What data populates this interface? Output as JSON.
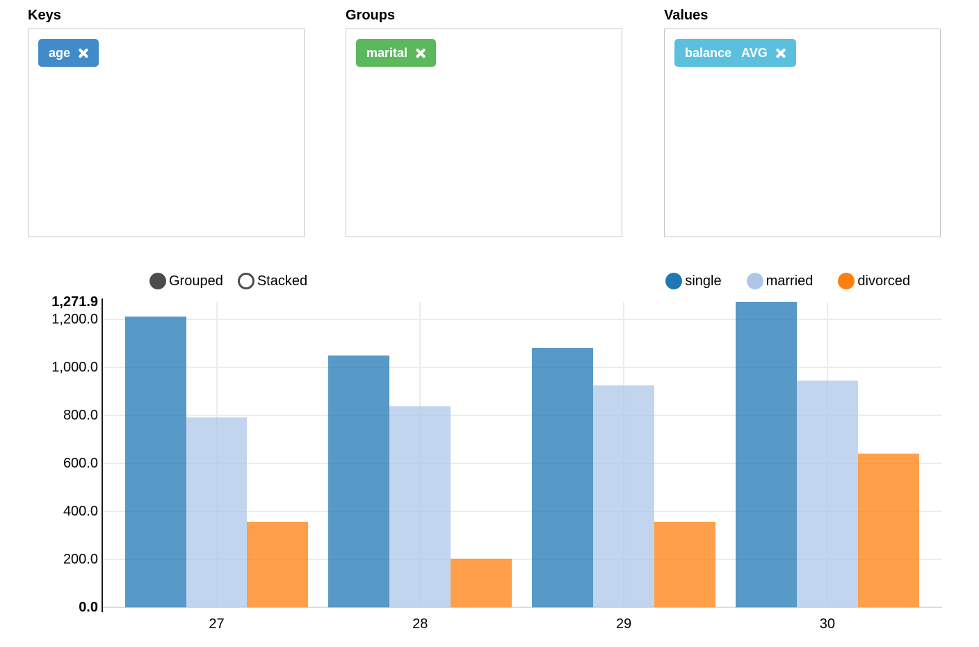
{
  "panels": [
    {
      "id": "keys",
      "label": "Keys",
      "tags": [
        {
          "text": "age",
          "agg": "",
          "icon": "x-icon",
          "color": "#428bca"
        }
      ]
    },
    {
      "id": "groups",
      "label": "Groups",
      "tags": [
        {
          "text": "marital",
          "agg": "",
          "icon": "x-icon",
          "color": "#5cb85c"
        }
      ]
    },
    {
      "id": "values",
      "label": "Values",
      "tags": [
        {
          "text": "balance",
          "agg": "AVG",
          "icon": "x-icon",
          "color": "#5bc0de"
        }
      ]
    }
  ],
  "chart_controls": [
    {
      "label": "Grouped",
      "active": true
    },
    {
      "label": "Stacked",
      "active": false
    }
  ],
  "control_color": "#4c4c4c",
  "chart_data": {
    "type": "bar",
    "mode": "grouped",
    "title": "",
    "xlabel": "",
    "ylabel": "",
    "categories": [
      "27",
      "28",
      "29",
      "30"
    ],
    "series": [
      {
        "name": "single",
        "color": "#1f77b4",
        "values": [
          1209.7,
          1047.5,
          1081.5,
          1271.9
        ]
      },
      {
        "name": "married",
        "color": "#aec7e8",
        "values": [
          792.1,
          838.7,
          924.8,
          943.5
        ]
      },
      {
        "name": "divorced",
        "color": "#ff7f0e",
        "values": [
          357.5,
          203.5,
          357.5,
          640.5
        ]
      }
    ],
    "ylim": [
      0,
      1271.9
    ],
    "y_ticks": [
      {
        "label": "0.0",
        "value": 0,
        "bold": true
      },
      {
        "label": "200.0",
        "value": 200,
        "bold": false
      },
      {
        "label": "400.0",
        "value": 400,
        "bold": false
      },
      {
        "label": "600.0",
        "value": 600,
        "bold": false
      },
      {
        "label": "800.0",
        "value": 800,
        "bold": false
      },
      {
        "label": "1,000.0",
        "value": 1000,
        "bold": false
      },
      {
        "label": "1,200.0",
        "value": 1200,
        "bold": false
      },
      {
        "label": "1,271.9",
        "value": 1271.9,
        "bold": true
      }
    ],
    "grid": true,
    "legend_position": "top-right"
  }
}
